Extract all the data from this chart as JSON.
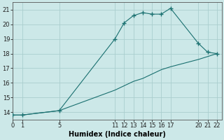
{
  "xlabel": "Humidex (Indice chaleur)",
  "bg_color": "#cce8e8",
  "grid_color": "#aacece",
  "line_color": "#1a7070",
  "x_data": [
    0,
    1,
    5,
    11,
    12,
    13,
    14,
    15,
    16,
    17,
    20,
    21,
    22
  ],
  "y_data": [
    13.8,
    13.8,
    14.1,
    19.0,
    20.1,
    20.6,
    20.8,
    20.7,
    20.7,
    21.1,
    18.7,
    18.1,
    18.0
  ],
  "y2_data": [
    13.8,
    13.8,
    14.1,
    15.5,
    15.8,
    16.1,
    16.3,
    16.6,
    16.9,
    17.1,
    17.6,
    17.8,
    18.0
  ],
  "xlim": [
    0,
    22.5
  ],
  "ylim": [
    13.5,
    21.5
  ],
  "yticks": [
    14,
    15,
    16,
    17,
    18,
    19,
    20,
    21
  ],
  "xticks": [
    0,
    1,
    5,
    11,
    12,
    13,
    14,
    15,
    16,
    17,
    20,
    21,
    22
  ],
  "xlabel_fontsize": 7,
  "tick_fontsize": 6
}
